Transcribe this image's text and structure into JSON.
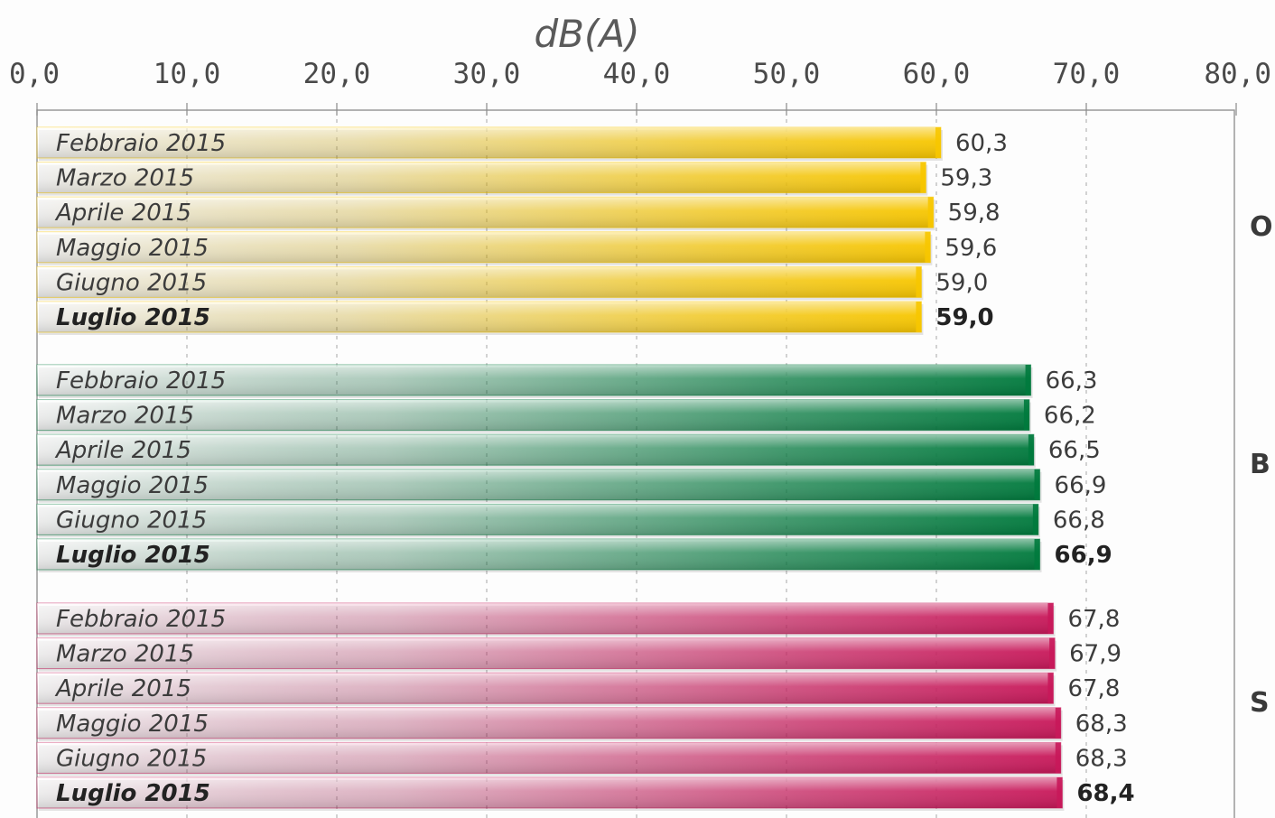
{
  "chart_data": {
    "type": "bar",
    "orientation": "horizontal",
    "title": "",
    "xlabel": "dB(A)",
    "ylabel": "",
    "xlim": [
      0,
      80
    ],
    "x_ticks": [
      "0,0",
      "10,0",
      "20,0",
      "30,0",
      "40,0",
      "50,0",
      "60,0",
      "70,0",
      "80,0"
    ],
    "grid": "vertical dashed",
    "axis_position": "top",
    "groups": [
      {
        "label": "O",
        "color": "#f7c600",
        "categories": [
          "Febbraio 2015",
          "Marzo 2015",
          "Aprile 2015",
          "Maggio 2015",
          "Giugno 2015",
          "Luglio 2015"
        ],
        "values": [
          60.3,
          59.3,
          59.8,
          59.6,
          59.0,
          59.0
        ],
        "value_labels": [
          "60,3",
          "59,3",
          "59,8",
          "59,6",
          "59,0",
          "59,0"
        ]
      },
      {
        "label": "B",
        "color": "#007a3d",
        "categories": [
          "Febbraio 2015",
          "Marzo 2015",
          "Aprile 2015",
          "Maggio 2015",
          "Giugno 2015",
          "Luglio 2015"
        ],
        "values": [
          66.3,
          66.2,
          66.5,
          66.9,
          66.8,
          66.9
        ],
        "value_labels": [
          "66,3",
          "66,2",
          "66,5",
          "66,9",
          "66,8",
          "66,9"
        ]
      },
      {
        "label": "S",
        "color": "#c8185a",
        "categories": [
          "Febbraio 2015",
          "Marzo 2015",
          "Aprile 2015",
          "Maggio 2015",
          "Giugno 2015",
          "Luglio 2015"
        ],
        "values": [
          67.8,
          67.9,
          67.8,
          68.3,
          68.3,
          68.4
        ],
        "value_labels": [
          "67,8",
          "67,9",
          "67,8",
          "68,3",
          "68,3",
          "68,4"
        ]
      }
    ],
    "bold_category": "Luglio 2015"
  }
}
